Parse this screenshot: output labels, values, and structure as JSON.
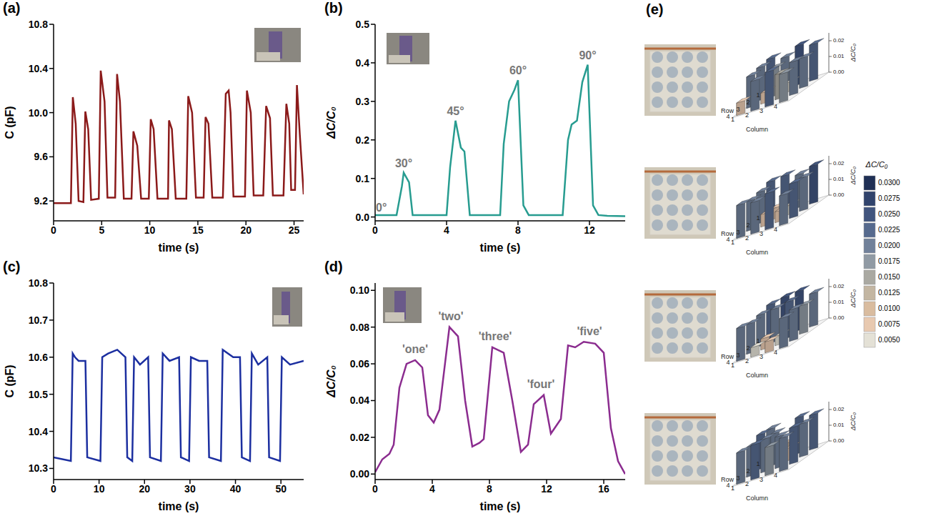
{
  "chart_data": [
    {
      "label": "(a)",
      "type": "line",
      "x_label": "time (s)",
      "y_label": "C (pF)",
      "color": "#8b1a1a",
      "xlim": [
        0,
        26
      ],
      "xticks": [
        0,
        5,
        10,
        15,
        20,
        25
      ],
      "ylim": [
        9.02,
        10.8
      ],
      "yticks": [
        9.2,
        9.6,
        {
          "value": 10,
          "label": "10.0"
        },
        10.4,
        10.8
      ],
      "x": [
        0,
        1.8,
        2.0,
        2.3,
        2.6,
        3.1,
        3.3,
        3.6,
        3.9,
        4.7,
        4.9,
        5.3,
        5.6,
        6.4,
        6.6,
        6.9,
        7.3,
        8.1,
        8.3,
        8.7,
        9.1,
        9.9,
        10.1,
        10.4,
        10.8,
        11.9,
        12.0,
        12.3,
        12.7,
        13.8,
        14.0,
        14.4,
        14.8,
        15.6,
        15.8,
        16.1,
        16.5,
        17.6,
        17.9,
        18.2,
        18.4,
        18.7,
        19.9,
        20.1,
        20.5,
        20.8,
        21.8,
        22.1,
        22.5,
        22.8,
        23.9,
        24.2,
        24.5,
        24.7,
        25.1,
        25.3,
        25.6,
        26
      ],
      "values": [
        9.18,
        9.18,
        10.14,
        9.9,
        9.2,
        9.19,
        10.01,
        9.85,
        9.21,
        9.22,
        10.38,
        10.1,
        9.23,
        9.23,
        10.35,
        10.1,
        9.22,
        9.22,
        9.83,
        9.7,
        9.22,
        9.22,
        9.94,
        9.85,
        9.22,
        9.22,
        9.93,
        9.85,
        9.22,
        9.22,
        10.15,
        10.0,
        9.23,
        9.23,
        9.96,
        9.9,
        9.23,
        9.23,
        10.17,
        10.2,
        10.0,
        9.24,
        9.24,
        10.2,
        10.0,
        9.25,
        9.25,
        10.06,
        9.95,
        9.25,
        9.25,
        10.08,
        9.9,
        9.3,
        9.3,
        10.25,
        9.8,
        9.26
      ]
    },
    {
      "label": "(b)",
      "type": "line",
      "x_label": "time (s)",
      "y_label": "ΔC/C₀",
      "color": "#279c90",
      "xlim": [
        0,
        14
      ],
      "xticks": [
        0,
        4,
        8,
        12
      ],
      "ylim": [
        -0.01,
        0.5
      ],
      "yticks": [
        {
          "value": 0,
          "label": "0.0"
        },
        0.1,
        0.2,
        0.3,
        0.4,
        0.5
      ],
      "x": [
        0,
        1.2,
        1.5,
        1.6,
        1.9,
        2.1,
        2.5,
        4.0,
        4.2,
        4.5,
        4.8,
        5.0,
        5.3,
        7.0,
        7.2,
        7.5,
        7.8,
        8.0,
        8.3,
        8.6,
        10.5,
        10.8,
        11.0,
        11.3,
        11.6,
        11.9,
        12.2,
        12.5,
        13,
        14
      ],
      "values": [
        0.005,
        0.005,
        0.08,
        0.115,
        0.09,
        0.005,
        0.005,
        0.005,
        0.13,
        0.25,
        0.18,
        0.17,
        0.005,
        0.005,
        0.19,
        0.3,
        0.33,
        0.355,
        0.03,
        0.005,
        0.005,
        0.2,
        0.24,
        0.25,
        0.35,
        0.395,
        0.03,
        0.005,
        0.003,
        0.002
      ],
      "annotations": [
        {
          "text": "0°",
          "x": 0.35,
          "y": 0.025
        },
        {
          "text": "30°",
          "x": 1.6,
          "y": 0.14
        },
        {
          "text": "45°",
          "x": 4.5,
          "y": 0.275
        },
        {
          "text": "60°",
          "x": 8.0,
          "y": 0.38
        },
        {
          "text": "90°",
          "x": 11.9,
          "y": 0.42
        }
      ]
    },
    {
      "label": "(c)",
      "type": "line",
      "x_label": "time (s)",
      "y_label": "C (pF)",
      "color": "#1c2fa0",
      "xlim": [
        0,
        55
      ],
      "xticks": [
        0,
        10,
        20,
        30,
        40,
        50
      ],
      "ylim": [
        10.27,
        10.8
      ],
      "yticks": [
        10.3,
        10.4,
        10.5,
        10.6,
        10.7,
        10.8
      ],
      "x": [
        0,
        3.8,
        4.2,
        4.7,
        5.5,
        7.0,
        7.4,
        10.3,
        10.7,
        12,
        14,
        15.8,
        16.2,
        17.3,
        17.7,
        19,
        20.8,
        21.2,
        23.6,
        24.0,
        25.5,
        27.6,
        28.0,
        29.8,
        30.2,
        32,
        33.8,
        34.2,
        36.8,
        37.2,
        39.5,
        41.0,
        41.4,
        43.2,
        43.6,
        45,
        47.0,
        47.4,
        49.8,
        50.2,
        52,
        55
      ],
      "values": [
        10.33,
        10.32,
        10.61,
        10.6,
        10.59,
        10.59,
        10.33,
        10.32,
        10.6,
        10.61,
        10.62,
        10.6,
        10.33,
        10.32,
        10.6,
        10.58,
        10.6,
        10.33,
        10.32,
        10.61,
        10.59,
        10.6,
        10.33,
        10.32,
        10.6,
        10.59,
        10.59,
        10.33,
        10.32,
        10.62,
        10.6,
        10.6,
        10.33,
        10.32,
        10.61,
        10.58,
        10.6,
        10.33,
        10.32,
        10.6,
        10.58,
        10.59
      ]
    },
    {
      "label": "(d)",
      "type": "line",
      "x_label": "time (s)",
      "y_label": "ΔC/C₀",
      "color": "#8b2c8f",
      "xlim": [
        0,
        17.5
      ],
      "xticks": [
        0,
        4,
        8,
        12,
        16
      ],
      "ylim": [
        -0.003,
        0.104
      ],
      "yticks": [
        {
          "value": 0,
          "label": "0.00"
        },
        0.02,
        0.04,
        0.06,
        0.08,
        {
          "value": 0.1,
          "label": "0.10"
        }
      ],
      "x": [
        0,
        0.5,
        1.0,
        1.3,
        1.7,
        2.2,
        2.8,
        3.3,
        3.7,
        4.1,
        4.5,
        5.2,
        5.8,
        6.3,
        6.8,
        7.3,
        7.6,
        8.2,
        9.0,
        9.6,
        10.2,
        10.7,
        11.1,
        11.8,
        12.3,
        13.0,
        13.5,
        14.0,
        14.6,
        15.4,
        16.0,
        16.5,
        17.0,
        17.5
      ],
      "values": [
        0.001,
        0.008,
        0.011,
        0.016,
        0.047,
        0.06,
        0.062,
        0.058,
        0.032,
        0.028,
        0.035,
        0.08,
        0.075,
        0.04,
        0.015,
        0.017,
        0.019,
        0.069,
        0.066,
        0.04,
        0.012,
        0.016,
        0.038,
        0.043,
        0.022,
        0.03,
        0.07,
        0.069,
        0.072,
        0.071,
        0.066,
        0.025,
        0.007,
        0.0
      ],
      "annotations": [
        {
          "text": "'one'",
          "x": 2.8,
          "y": 0.068
        },
        {
          "text": "'two'",
          "x": 5.3,
          "y": 0.086
        },
        {
          "text": "'three'",
          "x": 8.4,
          "y": 0.075
        },
        {
          "text": "'four'",
          "x": 11.6,
          "y": 0.049
        },
        {
          "text": "'five'",
          "x": 15.0,
          "y": 0.078
        }
      ]
    },
    {
      "label": "(e)",
      "type": "bar3d",
      "x_label": "Column",
      "y_label": "Row",
      "z_label": "ΔC/C₀",
      "x": [
        1,
        2,
        3,
        4
      ],
      "y": [
        1,
        2,
        3,
        4
      ],
      "zlim": [
        0,
        0.025
      ],
      "zticks": [
        {
          "value": 0,
          "label": "0.00"
        },
        0.01,
        0.02
      ],
      "maps": [
        [
          [
            0.022,
            0.02,
            0.025,
            0.023
          ],
          [
            0.021,
            0.018,
            0.006,
            0.019
          ],
          [
            0.02,
            0.007,
            0.016,
            0.021
          ],
          [
            0.008,
            0.019,
            0.022,
            0.018
          ]
        ],
        [
          [
            0.022,
            0.023,
            0.021,
            0.024
          ],
          [
            0.02,
            0.007,
            0.006,
            0.021
          ],
          [
            0.019,
            0.008,
            0.007,
            0.022
          ],
          [
            0.021,
            0.02,
            0.023,
            0.019
          ]
        ],
        [
          [
            0.022,
            0.024,
            0.025,
            0.021
          ],
          [
            0.02,
            0.021,
            0.023,
            0.018
          ],
          [
            0.019,
            0.007,
            0.006,
            0.02
          ],
          [
            0.021,
            0.006,
            0.007,
            0.019
          ]
        ],
        [
          [
            0.021,
            0.009,
            0.023,
            0.022
          ],
          [
            0.022,
            0.02,
            0.008,
            0.021
          ],
          [
            0.019,
            0.021,
            0.02,
            0.023
          ],
          [
            0.02,
            0.022,
            0.018,
            0.021
          ]
        ]
      ],
      "colorbar": {
        "title": "ΔC/C₀",
        "range": [
          0.005,
          0.03
        ],
        "ticks": [
          {
            "value": 0.005,
            "label": "0.0050"
          },
          {
            "value": 0.0075,
            "label": "0.0075"
          },
          {
            "value": 0.01,
            "label": "0.0100"
          },
          0.0125,
          {
            "value": 0.015,
            "label": "0.0150"
          },
          0.0175,
          {
            "value": 0.02,
            "label": "0.0200"
          },
          0.0225,
          {
            "value": 0.025,
            "label": "0.0250"
          },
          0.0275,
          {
            "value": 0.03,
            "label": "0.0300"
          }
        ]
      }
    }
  ]
}
